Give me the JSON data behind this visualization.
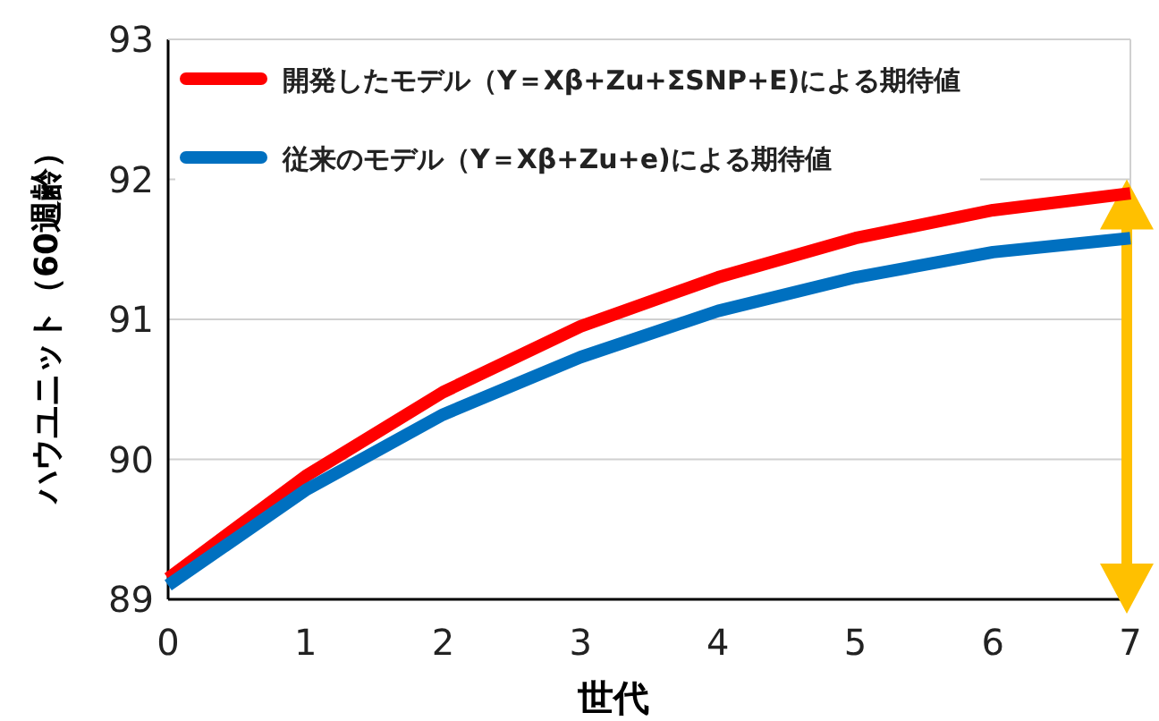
{
  "chart_data": {
    "type": "line",
    "xlabel": "世代",
    "ylabel": "ハウユニット（60週齢）",
    "x": [
      0,
      1,
      2,
      3,
      4,
      5,
      6,
      7
    ],
    "series": [
      {
        "name": "開発したモデル（Y＝Xβ+Zu+ΣSNP+E)による期待値",
        "color": "#ff0000",
        "values": [
          89.15,
          89.88,
          90.48,
          90.95,
          91.3,
          91.58,
          91.78,
          91.9
        ]
      },
      {
        "name": "従来のモデル（Y＝Xβ+Zu+e)による期待値",
        "color": "#0070c0",
        "values": [
          89.1,
          89.78,
          90.32,
          90.73,
          91.06,
          91.3,
          91.48,
          91.58
        ]
      }
    ],
    "xlim": [
      0,
      7
    ],
    "xticks": [
      0,
      1,
      2,
      3,
      4,
      5,
      6,
      7
    ],
    "ylim": [
      89,
      93
    ],
    "yticks": [
      89,
      90,
      91,
      92,
      93
    ],
    "grid": "y",
    "legend": "top",
    "marker": "none",
    "line_style": "solid"
  }
}
